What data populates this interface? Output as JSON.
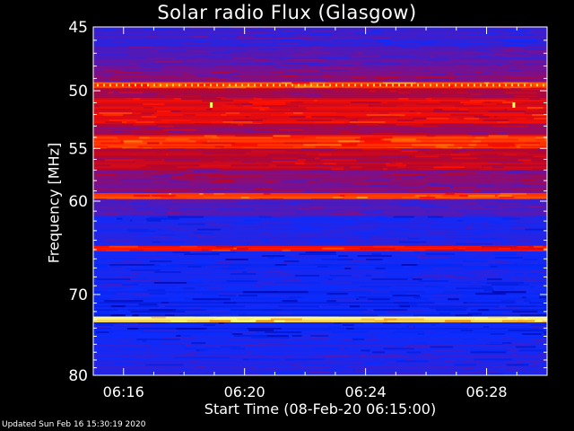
{
  "chart_data": {
    "type": "heatmap",
    "title": "Solar radio Flux (Glasgow)",
    "xlabel": "Start Time (08-Feb-20 06:15:00)",
    "ylabel": "Frequency [MHz]",
    "footer": "Updated Sun Feb 16 15:30:19 2020",
    "x_unit": "minutes after 06:15:00",
    "xlim": [
      0,
      15
    ],
    "ylim": [
      45,
      80
    ],
    "y_scale": "log",
    "y_reversed": true,
    "x_ticks": [
      {
        "value": 1,
        "label": "06:16"
      },
      {
        "value": 5,
        "label": "06:20"
      },
      {
        "value": 9,
        "label": "06:24"
      },
      {
        "value": 13,
        "label": "06:28"
      }
    ],
    "y_ticks": [
      {
        "value": 45,
        "label": "45"
      },
      {
        "value": 50,
        "label": "50"
      },
      {
        "value": 55,
        "label": "55"
      },
      {
        "value": 60,
        "label": "60"
      },
      {
        "value": 70,
        "label": "70"
      },
      {
        "value": 80,
        "label": "80"
      }
    ],
    "colormap": [
      "#0000a0",
      "#0a2cff",
      "#3a1fd0",
      "#7a1090",
      "#b8062a",
      "#ff1000",
      "#ff7a00",
      "#ffff80"
    ],
    "bands": [
      {
        "from": 45.0,
        "to": 46.5,
        "level": 0.28
      },
      {
        "from": 46.5,
        "to": 48.0,
        "level": 0.35
      },
      {
        "from": 48.0,
        "to": 49.3,
        "level": 0.45
      },
      {
        "from": 49.3,
        "to": 49.8,
        "level": 0.78
      },
      {
        "from": 49.8,
        "to": 50.6,
        "level": 0.55
      },
      {
        "from": 50.6,
        "to": 52.8,
        "level": 0.66
      },
      {
        "from": 52.8,
        "to": 53.8,
        "level": 0.52
      },
      {
        "from": 53.8,
        "to": 55.0,
        "level": 0.76
      },
      {
        "from": 55.0,
        "to": 57.0,
        "level": 0.58
      },
      {
        "from": 57.0,
        "to": 59.2,
        "level": 0.45
      },
      {
        "from": 59.2,
        "to": 59.8,
        "level": 0.8
      },
      {
        "from": 59.8,
        "to": 61.5,
        "level": 0.33
      },
      {
        "from": 61.5,
        "to": 64.6,
        "level": 0.2
      },
      {
        "from": 64.6,
        "to": 65.2,
        "level": 0.72
      },
      {
        "from": 65.2,
        "to": 69.0,
        "level": 0.17
      },
      {
        "from": 69.0,
        "to": 72.6,
        "level": 0.14
      },
      {
        "from": 72.6,
        "to": 73.3,
        "level": 0.98
      },
      {
        "from": 73.3,
        "to": 76.0,
        "level": 0.15
      },
      {
        "from": 76.0,
        "to": 80.0,
        "level": 0.22
      }
    ],
    "bright_spots": [
      {
        "x": 3.9,
        "y": 51.2
      },
      {
        "x": 13.9,
        "y": 51.2
      }
    ]
  }
}
